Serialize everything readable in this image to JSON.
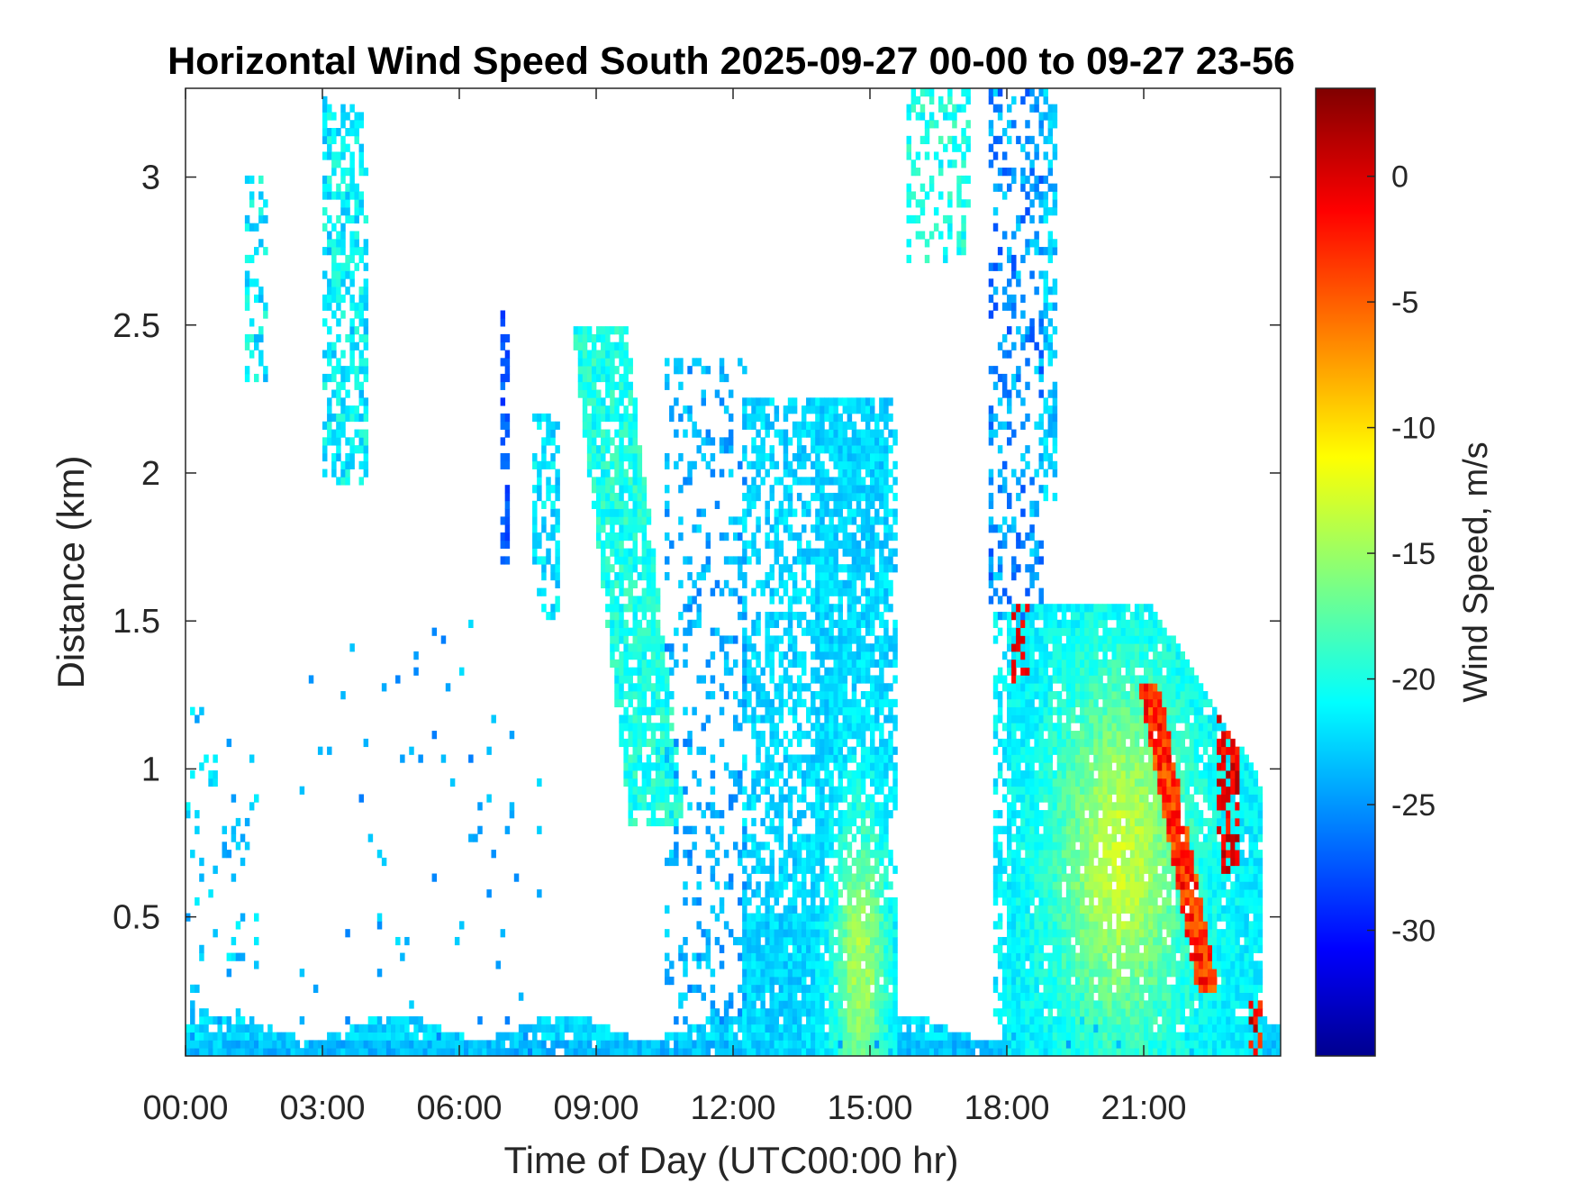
{
  "chart_data": {
    "type": "heatmap",
    "title": "Horizontal Wind Speed South 2025-09-27 00-00 to 09-27 23-56",
    "xlabel": "Time of Day (UTC00:00 hr)",
    "ylabel": "Distance (km)",
    "x_unit": "hours",
    "xlim": [
      0,
      24
    ],
    "ylim": [
      0.03,
      3.3
    ],
    "x_ticks": [
      0,
      3,
      6,
      9,
      12,
      15,
      18,
      21
    ],
    "x_tick_labels": [
      "00:00",
      "03:00",
      "06:00",
      "09:00",
      "12:00",
      "15:00",
      "18:00",
      "21:00"
    ],
    "y_ticks": [
      0.5,
      1,
      1.5,
      2,
      2.5,
      3
    ],
    "y_tick_labels": [
      "0.5",
      "1",
      "1.5",
      "2",
      "2.5",
      "3"
    ],
    "colorbar": {
      "label": "Wind Speed, m/s",
      "colormap": "jet",
      "range": [
        -35,
        3.5
      ],
      "ticks": [
        0,
        -5,
        -10,
        -15,
        -20,
        -25,
        -30
      ],
      "tick_labels": [
        "0",
        "-5",
        "-10",
        "-15",
        "-20",
        "-25",
        "-30"
      ]
    },
    "grid": false,
    "missing_color": "#ffffff",
    "time_step_minutes": 6,
    "features": [
      {
        "name": "near-surface layer",
        "x_range": [
          0,
          24
        ],
        "y_top": 0.15,
        "mean_speed": -24
      },
      {
        "name": "early isolated echoes",
        "x_range": [
          0,
          1.5
        ],
        "y_top": 1.2,
        "mean_speed": -26
      },
      {
        "name": "upper plumes",
        "x_range": [
          1.2,
          4.2
        ],
        "y_range": [
          1.9,
          3.3
        ],
        "mean_speed": -25
      },
      {
        "name": "morning column",
        "x_range": [
          8.8,
          10.4
        ],
        "y_range": [
          0.8,
          2.5
        ],
        "mean_speed": -22
      },
      {
        "name": "midday band",
        "x_range": [
          10.5,
          12.3
        ],
        "y_range": [
          0.15,
          2.4
        ],
        "mean_speed": -25
      },
      {
        "name": "afternoon column",
        "x_range": [
          12.2,
          15.5
        ],
        "y_range": [
          0.03,
          2.2
        ],
        "mean_speed": -22
      },
      {
        "name": "evening layer",
        "x_range": [
          17.7,
          23.3
        ],
        "y_range": [
          0.03,
          1.55
        ],
        "mean_speed": -18
      },
      {
        "name": "descending shear band",
        "x_range": [
          21.5,
          23.5
        ],
        "y_range": [
          0.25,
          1.25
        ],
        "mean_speed": -3
      },
      {
        "name": "upper jets",
        "x_range": [
          15.8,
          19.2
        ],
        "y_range": [
          1.6,
          3.3
        ],
        "mean_speed": -26
      }
    ]
  }
}
